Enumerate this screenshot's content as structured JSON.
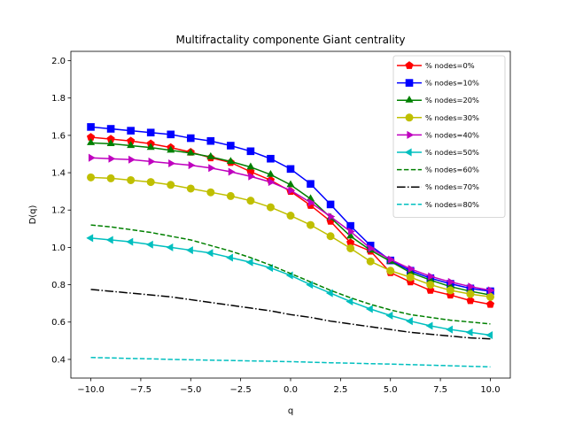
{
  "chart_data": {
    "type": "line",
    "title": "Multifractality componente Giant centrality",
    "xlabel": "q",
    "ylabel": "D(q)",
    "xlim": [
      -11,
      11
    ],
    "ylim": [
      0.3,
      2.05
    ],
    "xticks": [
      -10,
      -7.5,
      -5,
      -2.5,
      0,
      2.5,
      5,
      7.5,
      10
    ],
    "xtick_labels": [
      "−10.0",
      "−7.5",
      "−5.0",
      "−2.5",
      "0.0",
      "2.5",
      "5.0",
      "7.5",
      "10.0"
    ],
    "yticks": [
      0.4,
      0.6,
      0.8,
      1.0,
      1.2,
      1.4,
      1.6,
      1.8,
      2.0
    ],
    "ytick_labels": [
      "0.4",
      "0.6",
      "0.8",
      "1.0",
      "1.2",
      "1.4",
      "1.6",
      "1.8",
      "2.0"
    ],
    "grid": false,
    "legend_position": "top-right",
    "x": [
      -10,
      -9,
      -8,
      -7,
      -6,
      -5,
      -4,
      -3,
      -2,
      -1,
      0,
      1,
      2,
      3,
      4,
      5,
      6,
      7,
      8,
      9,
      10
    ],
    "series": [
      {
        "name": "% nodes=0%",
        "color": "#ff0000",
        "marker": "pentagon",
        "dash": "solid",
        "values": [
          1.59,
          1.58,
          1.57,
          1.555,
          1.535,
          1.51,
          1.48,
          1.455,
          1.405,
          1.36,
          1.3,
          1.225,
          1.14,
          1.025,
          0.98,
          0.865,
          0.815,
          0.77,
          0.745,
          0.715,
          0.695
        ]
      },
      {
        "name": "% nodes=10%",
        "color": "#0000ff",
        "marker": "square",
        "dash": "solid",
        "values": [
          1.645,
          1.635,
          1.625,
          1.615,
          1.605,
          1.585,
          1.57,
          1.545,
          1.515,
          1.475,
          1.42,
          1.34,
          1.23,
          1.115,
          1.01,
          0.93,
          0.875,
          0.835,
          0.805,
          0.78,
          0.765
        ]
      },
      {
        "name": "% nodes=20%",
        "color": "#008000",
        "marker": "triangle-up",
        "dash": "solid",
        "values": [
          1.56,
          1.555,
          1.545,
          1.535,
          1.52,
          1.505,
          1.485,
          1.46,
          1.43,
          1.39,
          1.335,
          1.26,
          1.16,
          1.06,
          0.985,
          0.925,
          0.865,
          0.825,
          0.79,
          0.765,
          0.745
        ]
      },
      {
        "name": "% nodes=30%",
        "color": "#bfbf00",
        "marker": "circle",
        "dash": "solid",
        "values": [
          1.375,
          1.37,
          1.36,
          1.35,
          1.335,
          1.315,
          1.295,
          1.275,
          1.25,
          1.215,
          1.17,
          1.12,
          1.06,
          0.995,
          0.925,
          0.875,
          0.84,
          0.8,
          0.77,
          0.75,
          0.735
        ]
      },
      {
        "name": "% nodes=40%",
        "color": "#bf00bf",
        "marker": "triangle-right",
        "dash": "solid",
        "values": [
          1.48,
          1.475,
          1.47,
          1.46,
          1.45,
          1.44,
          1.425,
          1.405,
          1.38,
          1.35,
          1.305,
          1.24,
          1.165,
          1.085,
          0.995,
          0.935,
          0.885,
          0.845,
          0.815,
          0.79,
          0.77
        ]
      },
      {
        "name": "% nodes=50%",
        "color": "#00bfbf",
        "marker": "triangle-left",
        "dash": "solid",
        "values": [
          1.05,
          1.04,
          1.03,
          1.015,
          1.0,
          0.985,
          0.97,
          0.945,
          0.92,
          0.89,
          0.85,
          0.8,
          0.755,
          0.71,
          0.67,
          0.635,
          0.605,
          0.58,
          0.56,
          0.545,
          0.53
        ]
      },
      {
        "name": "% nodes=60%",
        "color": "#008000",
        "marker": "none",
        "dash": "dashed",
        "values": [
          1.12,
          1.11,
          1.095,
          1.08,
          1.06,
          1.04,
          1.01,
          0.98,
          0.945,
          0.905,
          0.86,
          0.815,
          0.77,
          0.73,
          0.695,
          0.665,
          0.64,
          0.625,
          0.61,
          0.6,
          0.59
        ]
      },
      {
        "name": "% nodes=70%",
        "color": "#000000",
        "marker": "none",
        "dash": "dashdot",
        "values": [
          0.775,
          0.765,
          0.755,
          0.745,
          0.735,
          0.72,
          0.705,
          0.69,
          0.675,
          0.66,
          0.64,
          0.625,
          0.605,
          0.59,
          0.575,
          0.56,
          0.545,
          0.535,
          0.525,
          0.515,
          0.51
        ]
      },
      {
        "name": "% nodes=80%",
        "color": "#00bfbf",
        "marker": "none",
        "dash": "dashed",
        "values": [
          0.41,
          0.408,
          0.405,
          0.403,
          0.4,
          0.398,
          0.396,
          0.394,
          0.392,
          0.39,
          0.388,
          0.385,
          0.382,
          0.38,
          0.377,
          0.375,
          0.372,
          0.369,
          0.366,
          0.363,
          0.36
        ]
      }
    ]
  }
}
